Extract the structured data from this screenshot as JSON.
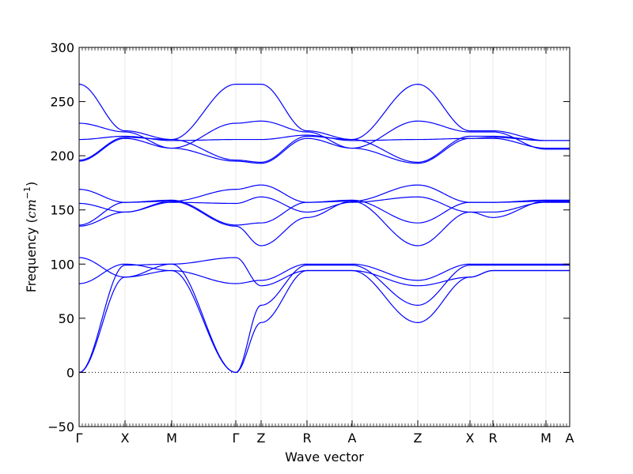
{
  "chart_data": {
    "type": "line",
    "xlabel": "Wave vector",
    "ylabel": "Frequency (",
    "ylabel_unit": "cm",
    "ylabel_exp": "−1",
    "ylabel_close": ")",
    "ylim": [
      -50,
      300
    ],
    "yticks": [
      {
        "value": -50,
        "label": "−50"
      },
      {
        "value": 0,
        "label": "0"
      },
      {
        "value": 50,
        "label": "50"
      },
      {
        "value": 100,
        "label": "100"
      },
      {
        "value": 150,
        "label": "150"
      },
      {
        "value": 200,
        "label": "200"
      },
      {
        "value": 250,
        "label": "250"
      },
      {
        "value": 300,
        "label": "300"
      }
    ],
    "xlim": [
      0,
      620
    ],
    "high_symmetry_points": [
      {
        "label": "Γ",
        "x": 0
      },
      {
        "label": "X",
        "x": 58
      },
      {
        "label": "M",
        "x": 117
      },
      {
        "label": "Γ",
        "x": 198
      },
      {
        "label": "Z",
        "x": 230
      },
      {
        "label": "R",
        "x": 288
      },
      {
        "label": "A",
        "x": 345
      },
      {
        "label": "Z",
        "x": 428
      },
      {
        "label": "X",
        "x": 494
      },
      {
        "label": "R",
        "x": 523
      },
      {
        "label": "M",
        "x": 590
      },
      {
        "label": "A",
        "x": 620
      }
    ],
    "zero_line": true,
    "line_color": "#0000ff",
    "series": [
      {
        "x": [
          0,
          58,
          117,
          198,
          230,
          288,
          345,
          428,
          494,
          523,
          590,
          620
        ],
        "y": [
          0,
          88,
          94,
          0,
          46,
          94,
          94,
          46,
          88,
          94,
          94,
          94
        ]
      },
      {
        "x": [
          0,
          58,
          117,
          198,
          230,
          288,
          345,
          428,
          494,
          523,
          590,
          620
        ],
        "y": [
          0,
          99,
          100,
          0,
          62,
          99,
          99,
          62,
          99,
          99,
          99,
          99
        ]
      },
      {
        "x": [
          0,
          58,
          117,
          198,
          230,
          288,
          345,
          428,
          494,
          523,
          590,
          620
        ],
        "y": [
          82,
          100,
          94,
          82,
          85,
          100,
          100,
          85,
          100,
          100,
          100,
          100
        ]
      },
      {
        "x": [
          0,
          58,
          117,
          198,
          230,
          288,
          345,
          428,
          494,
          523,
          590,
          620
        ],
        "y": [
          106,
          88,
          100,
          106,
          80,
          94,
          94,
          80,
          88,
          94,
          94,
          94
        ]
      },
      {
        "x": [
          0,
          58,
          117,
          198,
          230,
          288,
          345,
          428,
          494,
          523,
          590,
          620
        ],
        "y": [
          135,
          148,
          158,
          135,
          117,
          143,
          158,
          117,
          148,
          143,
          158,
          158
        ]
      },
      {
        "x": [
          0,
          58,
          117,
          198,
          230,
          288,
          345,
          428,
          494,
          523,
          590,
          620
        ],
        "y": [
          136,
          157,
          159,
          136,
          138,
          157,
          159,
          138,
          157,
          157,
          159,
          159
        ]
      },
      {
        "x": [
          0,
          58,
          117,
          198,
          230,
          288,
          345,
          428,
          494,
          523,
          590,
          620
        ],
        "y": [
          156,
          148,
          157,
          156,
          162,
          148,
          157,
          162,
          148,
          148,
          157,
          157
        ]
      },
      {
        "x": [
          0,
          58,
          117,
          198,
          230,
          288,
          345,
          428,
          494,
          523,
          590,
          620
        ],
        "y": [
          169,
          157,
          158,
          169,
          173,
          157,
          158,
          173,
          157,
          157,
          158,
          158
        ]
      },
      {
        "x": [
          0,
          58,
          117,
          198,
          230,
          288,
          345,
          428,
          494,
          523,
          590,
          620
        ],
        "y": [
          195,
          216,
          207,
          195,
          193,
          216,
          207,
          193,
          216,
          216,
          207,
          207
        ]
      },
      {
        "x": [
          0,
          58,
          117,
          198,
          230,
          288,
          345,
          428,
          494,
          523,
          590,
          620
        ],
        "y": [
          196,
          217,
          215,
          196,
          194,
          218,
          215,
          194,
          218,
          218,
          214,
          214
        ]
      },
      {
        "x": [
          0,
          58,
          117,
          198,
          230,
          288,
          345,
          428,
          494,
          523,
          590,
          620
        ],
        "y": [
          215,
          218,
          214,
          215,
          215,
          219,
          214,
          215,
          216,
          217,
          214,
          214
        ]
      },
      {
        "x": [
          0,
          58,
          117,
          198,
          230,
          288,
          345,
          428,
          494,
          523,
          590,
          620
        ],
        "y": [
          230,
          222,
          207,
          230,
          232,
          222,
          207,
          232,
          222,
          222,
          206,
          206
        ]
      },
      {
        "x": [
          0,
          58,
          117,
          198,
          230,
          288,
          345,
          428,
          494,
          523,
          590,
          620
        ],
        "y": [
          266,
          223,
          215,
          266,
          266,
          223,
          215,
          266,
          223,
          223,
          214,
          214
        ]
      }
    ]
  }
}
